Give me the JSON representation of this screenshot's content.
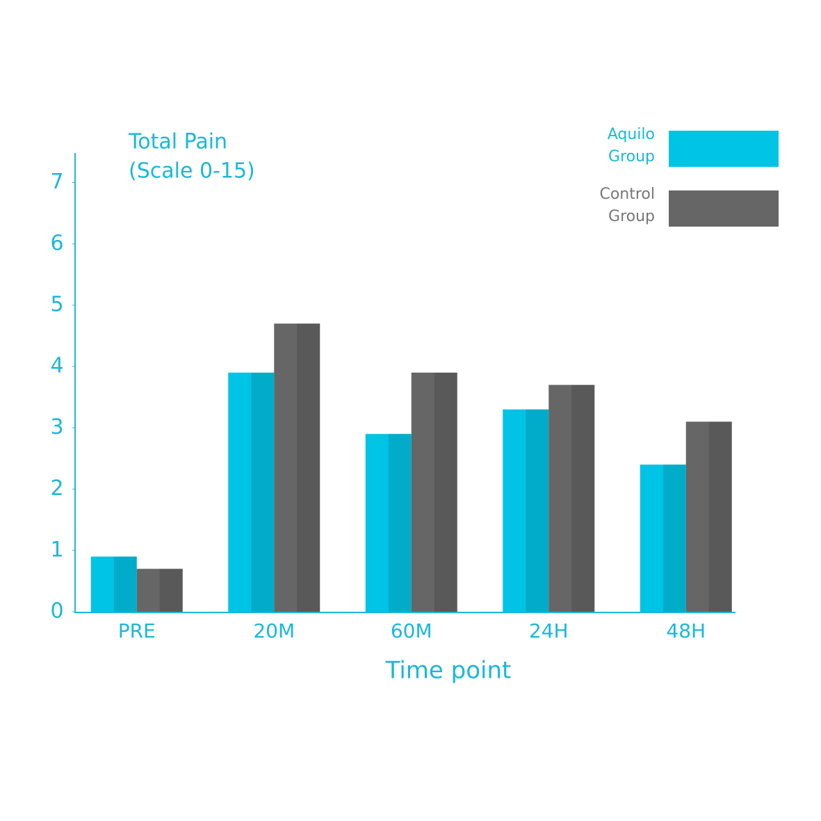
{
  "chart_data": {
    "type": "bar",
    "title": "Total Pain",
    "subtitle": "(Scale 0-15)",
    "x_label": "Time point",
    "categories": [
      "PRE",
      "20M",
      "60M",
      "24H",
      "48H"
    ],
    "series": [
      {
        "name": "Aquilo Group",
        "color": "#00c4e6",
        "values": [
          0.9,
          3.9,
          2.9,
          3.3,
          2.4
        ]
      },
      {
        "name": "Control Group",
        "color": "#666666",
        "values": [
          0.7,
          4.7,
          3.9,
          3.7,
          3.1
        ]
      }
    ],
    "ylim": [
      0,
      7.5
    ],
    "yticks": [
      0,
      1,
      2,
      3,
      4,
      5,
      6,
      7
    ],
    "grid": false,
    "legend": "top-right"
  }
}
